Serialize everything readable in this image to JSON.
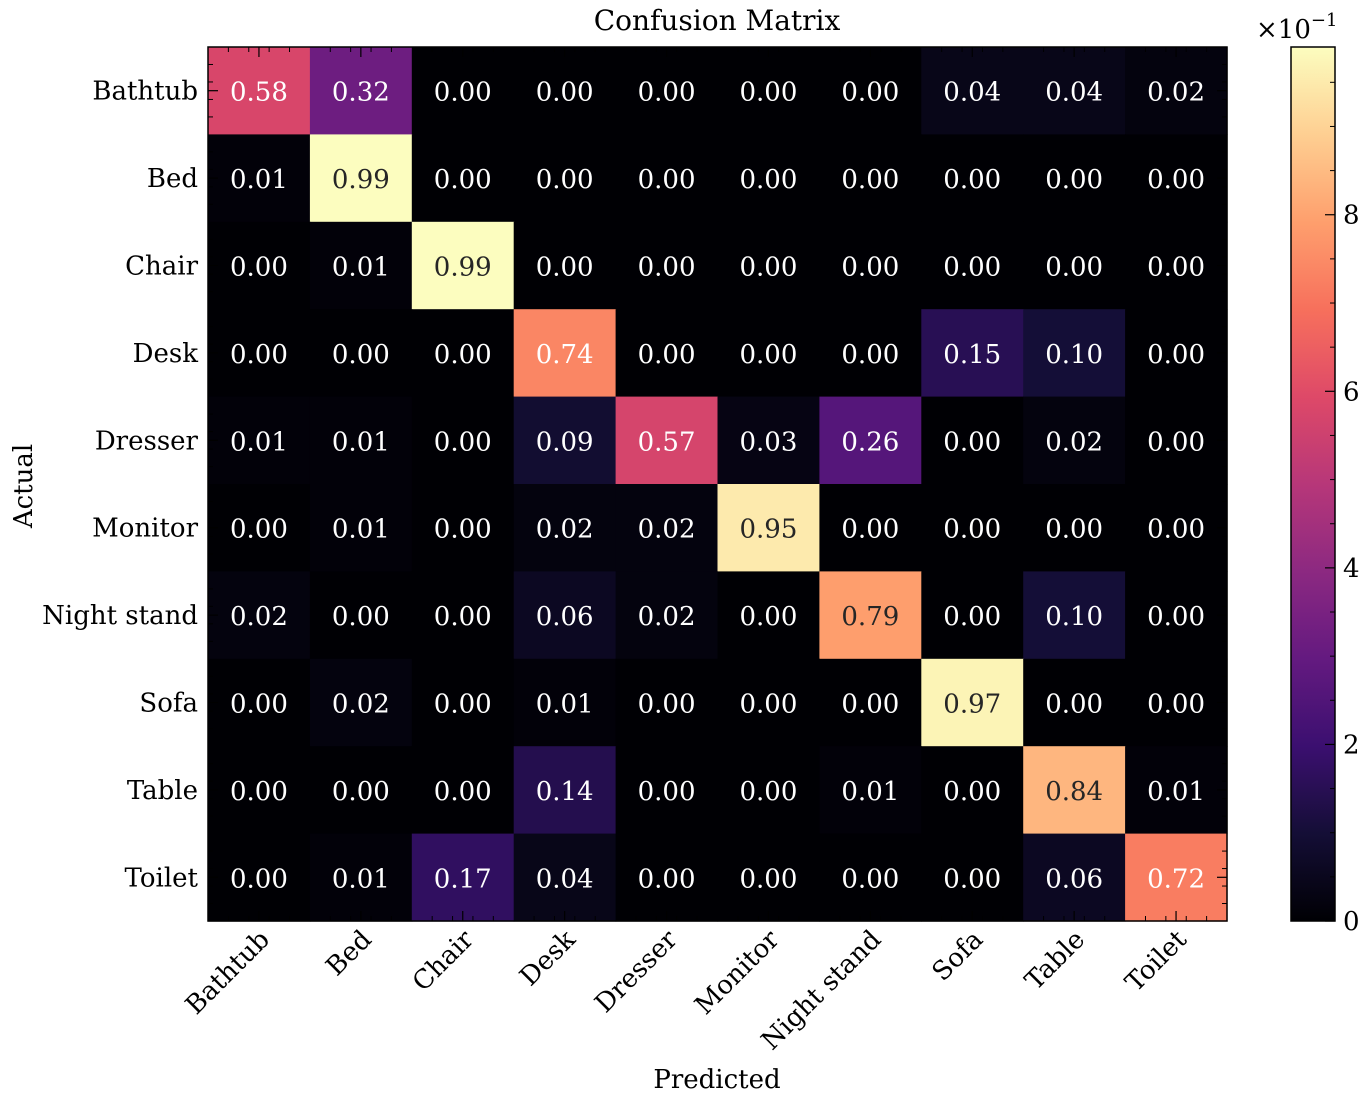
{
  "chart_data": {
    "type": "heatmap",
    "title": "Confusion Matrix",
    "xlabel": "Predicted",
    "ylabel": "Actual",
    "x_categories": [
      "Bathtub",
      "Bed",
      "Chair",
      "Desk",
      "Dresser",
      "Monitor",
      "Night stand",
      "Sofa",
      "Table",
      "Toilet"
    ],
    "y_categories": [
      "Bathtub",
      "Bed",
      "Chair",
      "Desk",
      "Dresser",
      "Monitor",
      "Night stand",
      "Sofa",
      "Table",
      "Toilet"
    ],
    "values": [
      [
        0.58,
        0.32,
        0.0,
        0.0,
        0.0,
        0.0,
        0.0,
        0.04,
        0.04,
        0.02
      ],
      [
        0.01,
        0.99,
        0.0,
        0.0,
        0.0,
        0.0,
        0.0,
        0.0,
        0.0,
        0.0
      ],
      [
        0.0,
        0.01,
        0.99,
        0.0,
        0.0,
        0.0,
        0.0,
        0.0,
        0.0,
        0.0
      ],
      [
        0.0,
        0.0,
        0.0,
        0.74,
        0.0,
        0.0,
        0.0,
        0.15,
        0.1,
        0.0
      ],
      [
        0.01,
        0.01,
        0.0,
        0.09,
        0.57,
        0.03,
        0.26,
        0.0,
        0.02,
        0.0
      ],
      [
        0.0,
        0.01,
        0.0,
        0.02,
        0.02,
        0.95,
        0.0,
        0.0,
        0.0,
        0.0
      ],
      [
        0.02,
        0.0,
        0.0,
        0.06,
        0.02,
        0.0,
        0.79,
        0.0,
        0.1,
        0.0
      ],
      [
        0.0,
        0.02,
        0.0,
        0.01,
        0.0,
        0.0,
        0.0,
        0.97,
        0.0,
        0.0
      ],
      [
        0.0,
        0.0,
        0.0,
        0.14,
        0.0,
        0.0,
        0.01,
        0.0,
        0.84,
        0.01
      ],
      [
        0.0,
        0.01,
        0.17,
        0.04,
        0.0,
        0.0,
        0.0,
        0.0,
        0.06,
        0.72
      ]
    ],
    "value_range": [
      0,
      0.99
    ],
    "colormap": "magma",
    "colorbar": {
      "ticks": [
        0,
        2,
        4,
        6,
        8
      ],
      "tick_labels": [
        "0",
        "2",
        "4",
        "6",
        "8"
      ],
      "multiplier": "×10",
      "exponent": "−1"
    },
    "annotation_colors": {
      "on_dark": "#ffffff",
      "on_light": "#262626"
    },
    "grid": false,
    "legend": "colorbar-right"
  }
}
